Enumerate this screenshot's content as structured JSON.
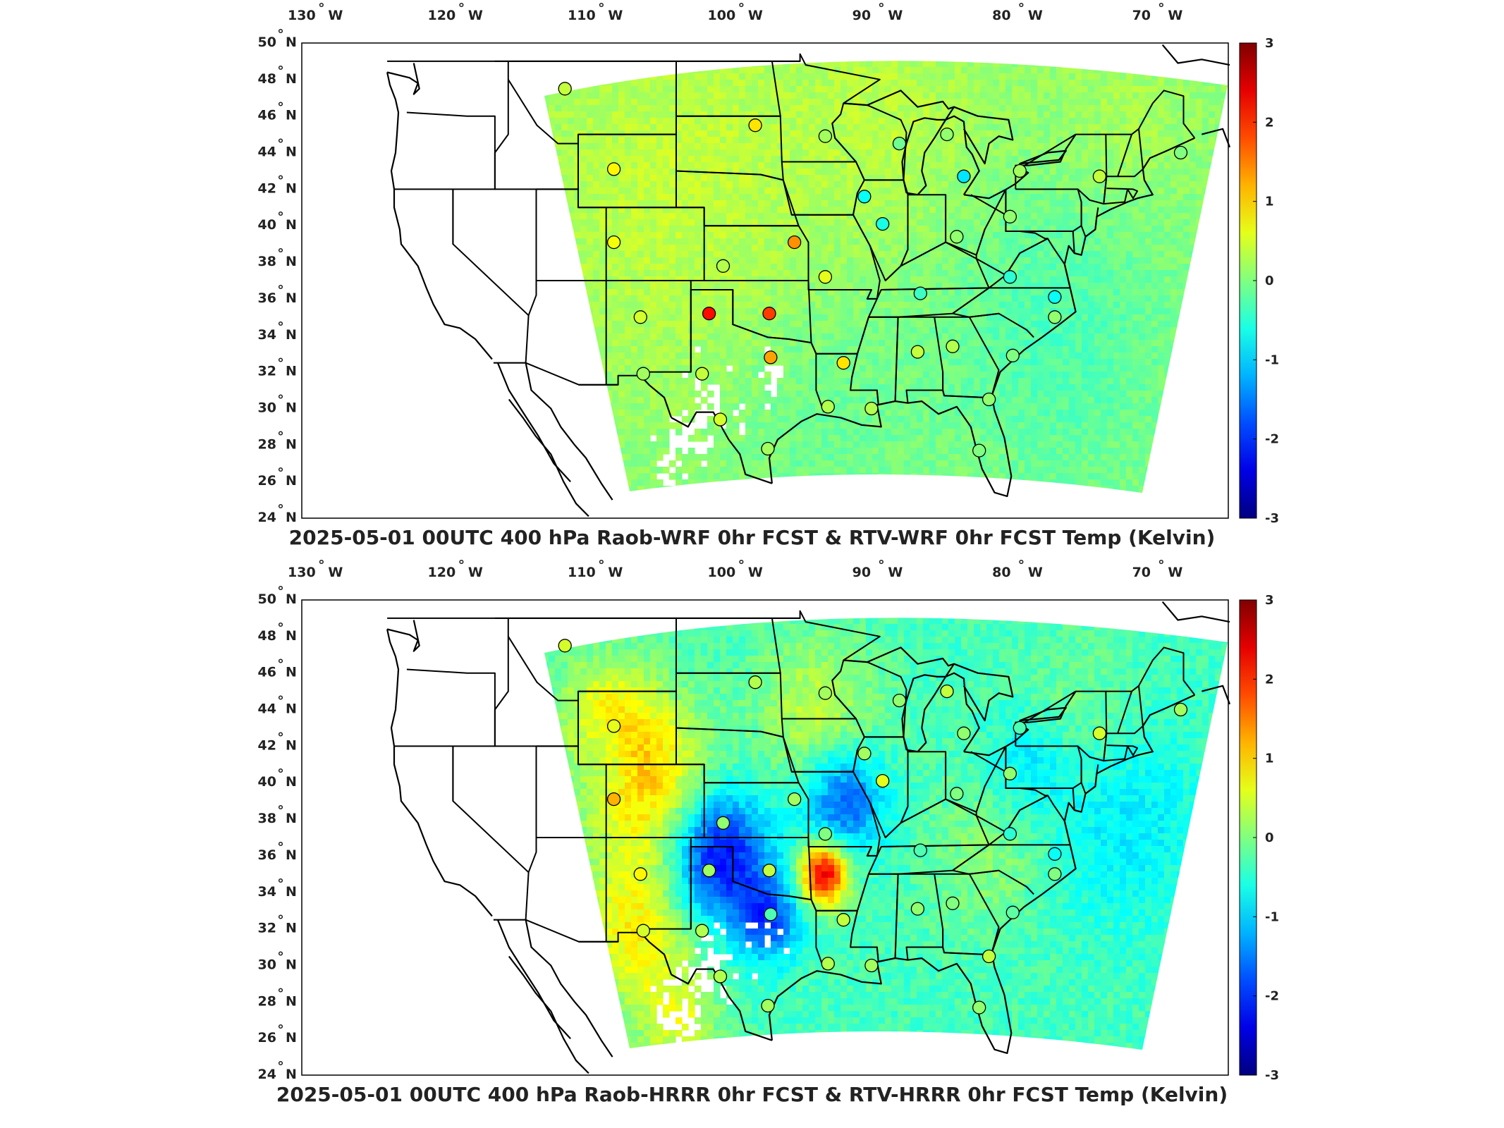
{
  "panels": [
    {
      "title": "2025-05-01 00UTC 400 hPa Raob-WRF 0hr FCST & RTV-WRF 0hr FCST Temp (Kelvin)",
      "field_style": "wrf",
      "stations": [
        {
          "lon": -112.0,
          "lat": 47.5,
          "v": 0.4
        },
        {
          "lon": -98.4,
          "lat": 45.5,
          "v": 0.9
        },
        {
          "lon": -93.4,
          "lat": 44.9,
          "v": 0.2
        },
        {
          "lon": -88.1,
          "lat": 44.5,
          "v": -0.1
        },
        {
          "lon": -84.7,
          "lat": 45.0,
          "v": 0.1
        },
        {
          "lon": -108.5,
          "lat": 43.1,
          "v": 0.8
        },
        {
          "lon": -90.6,
          "lat": 41.6,
          "v": -0.7
        },
        {
          "lon": -83.5,
          "lat": 42.7,
          "v": -0.9
        },
        {
          "lon": -79.5,
          "lat": 43.0,
          "v": 0.2
        },
        {
          "lon": -73.8,
          "lat": 42.7,
          "v": 0.4
        },
        {
          "lon": -68.0,
          "lat": 44.0,
          "v": 0.0
        },
        {
          "lon": -89.3,
          "lat": 40.1,
          "v": -0.6
        },
        {
          "lon": -80.2,
          "lat": 40.5,
          "v": 0.1
        },
        {
          "lon": -108.5,
          "lat": 39.1,
          "v": 0.7
        },
        {
          "lon": -95.6,
          "lat": 39.1,
          "v": 1.4
        },
        {
          "lon": -84.0,
          "lat": 39.4,
          "v": 0.1
        },
        {
          "lon": -100.7,
          "lat": 37.8,
          "v": 0.3
        },
        {
          "lon": -93.4,
          "lat": 37.2,
          "v": 0.6
        },
        {
          "lon": -86.6,
          "lat": 36.3,
          "v": -0.4
        },
        {
          "lon": -80.2,
          "lat": 37.2,
          "v": -0.5
        },
        {
          "lon": -77.0,
          "lat": 36.1,
          "v": -0.7
        },
        {
          "lon": -106.6,
          "lat": 35.0,
          "v": 0.5
        },
        {
          "lon": -101.7,
          "lat": 35.2,
          "v": 2.2
        },
        {
          "lon": -97.4,
          "lat": 35.2,
          "v": 1.9
        },
        {
          "lon": -97.3,
          "lat": 32.8,
          "v": 1.3
        },
        {
          "lon": -92.1,
          "lat": 32.5,
          "v": 0.9
        },
        {
          "lon": -86.8,
          "lat": 33.1,
          "v": 0.4
        },
        {
          "lon": -84.3,
          "lat": 33.4,
          "v": 0.3
        },
        {
          "lon": -80.0,
          "lat": 32.9,
          "v": 0.0
        },
        {
          "lon": -77.0,
          "lat": 35.0,
          "v": 0.1
        },
        {
          "lon": -106.4,
          "lat": 31.9,
          "v": 0.2
        },
        {
          "lon": -102.2,
          "lat": 31.9,
          "v": 0.4
        },
        {
          "lon": -93.2,
          "lat": 30.1,
          "v": 0.3
        },
        {
          "lon": -81.7,
          "lat": 30.5,
          "v": 0.1
        },
        {
          "lon": -100.9,
          "lat": 29.4,
          "v": 0.5
        },
        {
          "lon": -97.5,
          "lat": 27.8,
          "v": 0.2
        },
        {
          "lon": -82.4,
          "lat": 27.7,
          "v": 0.0
        },
        {
          "lon": -90.1,
          "lat": 30.0,
          "v": 0.3
        }
      ]
    },
    {
      "title": "2025-05-01 00UTC 400 hPa Raob-HRRR 0hr FCST & RTV-HRRR 0hr FCST Temp (Kelvin)",
      "field_style": "hrrr",
      "stations": [
        {
          "lon": -112.0,
          "lat": 47.5,
          "v": 0.5
        },
        {
          "lon": -98.4,
          "lat": 45.5,
          "v": 0.3
        },
        {
          "lon": -93.4,
          "lat": 44.9,
          "v": 0.2
        },
        {
          "lon": -88.1,
          "lat": 44.5,
          "v": 0.1
        },
        {
          "lon": -84.7,
          "lat": 45.0,
          "v": 0.4
        },
        {
          "lon": -108.5,
          "lat": 43.1,
          "v": 0.6
        },
        {
          "lon": -90.6,
          "lat": 41.6,
          "v": 0.2
        },
        {
          "lon": -83.5,
          "lat": 42.7,
          "v": 0.1
        },
        {
          "lon": -79.5,
          "lat": 43.0,
          "v": -0.3
        },
        {
          "lon": -73.8,
          "lat": 42.7,
          "v": 0.5
        },
        {
          "lon": -68.0,
          "lat": 44.0,
          "v": 0.2
        },
        {
          "lon": -89.3,
          "lat": 40.1,
          "v": 0.6
        },
        {
          "lon": -80.2,
          "lat": 40.5,
          "v": 0.1
        },
        {
          "lon": -108.5,
          "lat": 39.1,
          "v": 1.2
        },
        {
          "lon": -95.6,
          "lat": 39.1,
          "v": 0.2
        },
        {
          "lon": -84.0,
          "lat": 39.4,
          "v": 0.0
        },
        {
          "lon": -100.7,
          "lat": 37.8,
          "v": 0.1
        },
        {
          "lon": -93.4,
          "lat": 37.2,
          "v": 0.0
        },
        {
          "lon": -86.6,
          "lat": 36.3,
          "v": -0.3
        },
        {
          "lon": -80.2,
          "lat": 37.2,
          "v": -0.5
        },
        {
          "lon": -77.0,
          "lat": 36.1,
          "v": -0.7
        },
        {
          "lon": -106.6,
          "lat": 35.0,
          "v": 0.8
        },
        {
          "lon": -101.7,
          "lat": 35.2,
          "v": 0.2
        },
        {
          "lon": -97.4,
          "lat": 35.2,
          "v": 0.4
        },
        {
          "lon": -97.3,
          "lat": 32.8,
          "v": -0.3
        },
        {
          "lon": -92.1,
          "lat": 32.5,
          "v": 0.4
        },
        {
          "lon": -86.8,
          "lat": 33.1,
          "v": 0.1
        },
        {
          "lon": -84.3,
          "lat": 33.4,
          "v": 0.0
        },
        {
          "lon": -80.0,
          "lat": 32.9,
          "v": -0.2
        },
        {
          "lon": -77.0,
          "lat": 35.0,
          "v": 0.0
        },
        {
          "lon": -106.4,
          "lat": 31.9,
          "v": 0.5
        },
        {
          "lon": -102.2,
          "lat": 31.9,
          "v": 0.3
        },
        {
          "lon": -93.2,
          "lat": 30.1,
          "v": 0.3
        },
        {
          "lon": -81.7,
          "lat": 30.5,
          "v": 0.4
        },
        {
          "lon": -100.9,
          "lat": 29.4,
          "v": 0.3
        },
        {
          "lon": -97.5,
          "lat": 27.8,
          "v": 0.2
        },
        {
          "lon": -82.4,
          "lat": 27.7,
          "v": 0.1
        },
        {
          "lon": -90.1,
          "lat": 30.0,
          "v": 0.2
        }
      ]
    }
  ],
  "lon_ticks": [
    "130",
    "120",
    "110",
    "100",
    "90",
    "80",
    "70"
  ],
  "lon_suffix": "W",
  "lat_ticks": [
    "50",
    "48",
    "46",
    "44",
    "42",
    "40",
    "38",
    "36",
    "34",
    "32",
    "30",
    "28",
    "26",
    "24"
  ],
  "lat_suffix": "N",
  "degree_symbol": "°",
  "colorbar_ticks": [
    "3",
    "2",
    "1",
    "0",
    "-1",
    "-2",
    "-3"
  ],
  "colormap": "jet",
  "clim": [
    -3,
    3
  ],
  "colors": {
    "state_lines": "#000000",
    "frame": "#000000",
    "background": "#ffffff"
  }
}
